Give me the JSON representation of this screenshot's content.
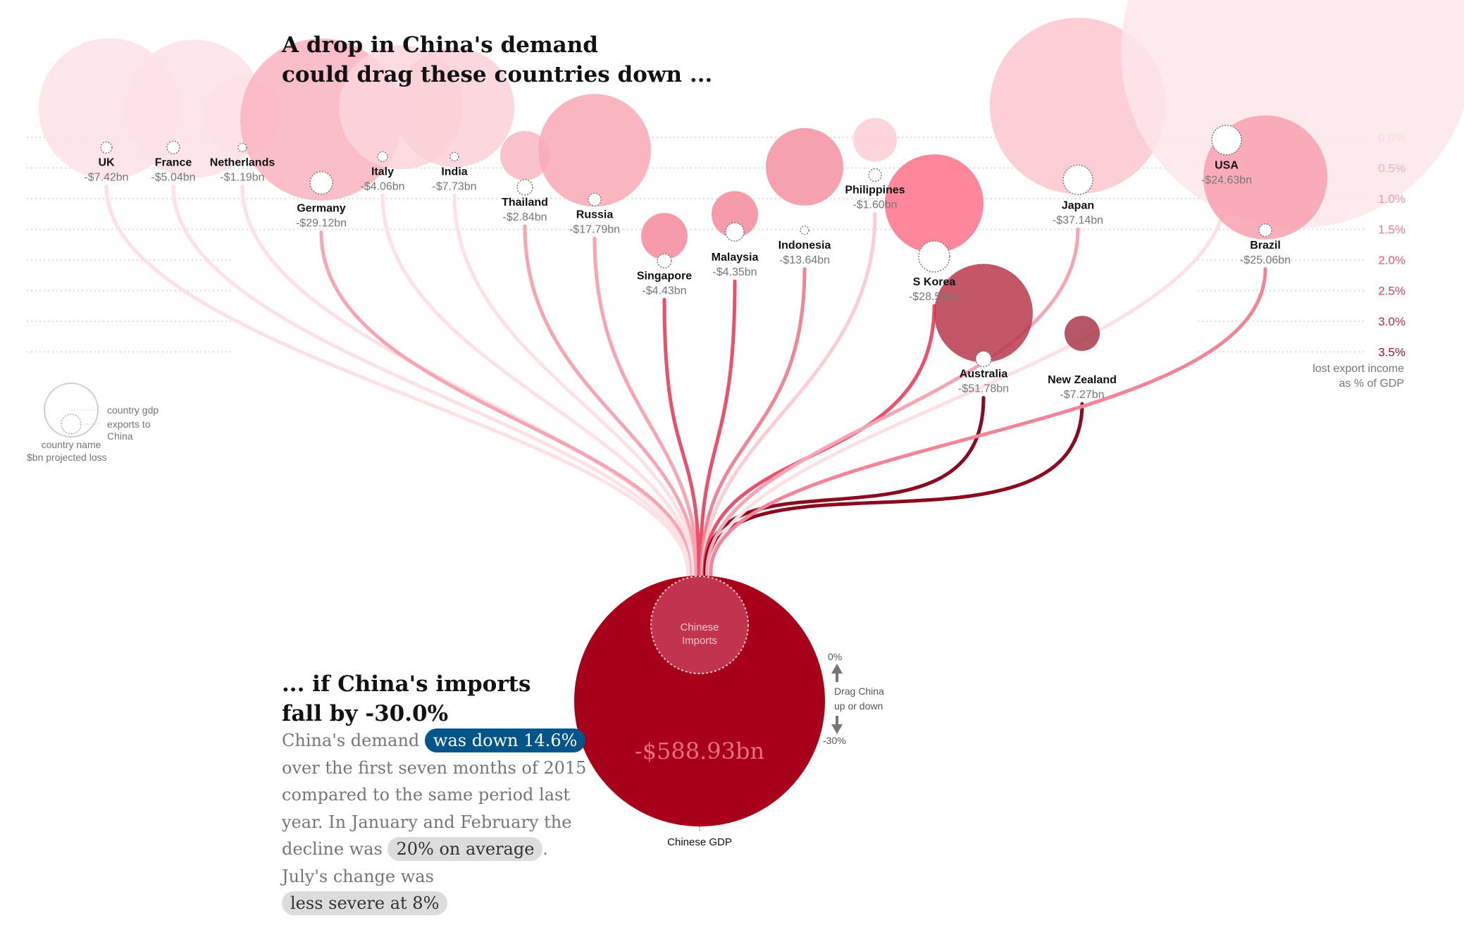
{
  "headline": {
    "line1": "A drop in China's demand",
    "line2": "could drag these countries down ..."
  },
  "subheadline": {
    "line1": "... if China's imports",
    "line2": "fall by -30.0%"
  },
  "paragraph": {
    "part1": "China's demand",
    "pill1": "was down 14.6%",
    "part2": "over the first seven months of 2015 compared to the same period last year. In January and February the decline was",
    "pill2": "20% on average",
    "part3": ".",
    "part4": "July's change was",
    "pill3": "less severe at 8%"
  },
  "axis": {
    "ticks": [
      "0.0%",
      "0.5%",
      "1.0%",
      "1.5%",
      "2.0%",
      "2.5%",
      "3.0%",
      "3.5%"
    ],
    "tick_colors": [
      "#fbd9dd",
      "#f8b2bc",
      "#f594a3",
      "#f07a8c",
      "#e75d73",
      "#d8415a",
      "#c52a45",
      "#a8102e"
    ],
    "caption_line1": "lost export income",
    "caption_line2": "as % of GDP"
  },
  "legend": {
    "gdp": "country gdp",
    "exports_line1": "exports to",
    "exports_line2": "China",
    "name": "country name",
    "loss": "$bn projected loss"
  },
  "china": {
    "imports_line1": "Chinese",
    "imports_line2": "Imports",
    "loss": "-$588.93bn",
    "gdp_label": "Chinese GDP",
    "color": "#a8001a",
    "slider_top": "0%",
    "slider_bottom": "-30%",
    "drag_line1": "Drag China",
    "drag_line2": "up or down"
  },
  "countries": [
    {
      "name": "UK",
      "loss": "-$7.42bn",
      "pct": 0.05,
      "gdp_r": 100,
      "exp_r": 8,
      "color": "#fde2e6"
    },
    {
      "name": "France",
      "loss": "-$5.04bn",
      "pct": 0.05,
      "gdp_r": 98,
      "exp_r": 9,
      "color": "#fde2e6"
    },
    {
      "name": "Netherlands",
      "loss": "-$1.19bn",
      "pct": 0.05,
      "gdp_r": 55,
      "exp_r": 6,
      "color": "#fde2e6"
    },
    {
      "name": "Germany",
      "loss": "-$29.12bn",
      "pct": 0.8,
      "gdp_r": 115,
      "exp_r": 16,
      "color": "#f9b3bf"
    },
    {
      "name": "Italy",
      "loss": "-$4.06bn",
      "pct": 0.2,
      "gdp_r": 88,
      "exp_r": 7,
      "color": "#fcd5dc"
    },
    {
      "name": "India",
      "loss": "-$7.73bn",
      "pct": 0.2,
      "gdp_r": 85,
      "exp_r": 6,
      "color": "#fcd0d7"
    },
    {
      "name": "Thailand",
      "loss": "-$2.84bn",
      "pct": 0.7,
      "gdp_r": 35,
      "exp_r": 11,
      "color": "#f9b8c3"
    },
    {
      "name": "Russia",
      "loss": "-$17.79bn",
      "pct": 0.9,
      "gdp_r": 80,
      "exp_r": 9,
      "color": "#f8a9b6"
    },
    {
      "name": "Singapore",
      "loss": "-$4.43bn",
      "pct": 1.9,
      "gdp_r": 33,
      "exp_r": 10,
      "color": "#f58a9c"
    },
    {
      "name": "Malaysia",
      "loss": "-$4.35bn",
      "pct": 1.6,
      "gdp_r": 33,
      "exp_r": 13,
      "color": "#f5899b"
    },
    {
      "name": "Indonesia",
      "loss": "-$13.64bn",
      "pct": 1.4,
      "gdp_r": 55,
      "exp_r": 6,
      "color": "#f590a2"
    },
    {
      "name": "Philippines",
      "loss": "-$1.60bn",
      "pct": 0.5,
      "gdp_r": 31,
      "exp_r": 9,
      "color": "#fbcdd5"
    },
    {
      "name": "S Korea",
      "loss": "-$28.53bn",
      "pct": 2.0,
      "gdp_r": 70,
      "exp_r": 22,
      "color": "#ff7289"
    },
    {
      "name": "Australia",
      "loss": "-$51.78bn",
      "pct": 3.5,
      "gdp_r": 70,
      "exp_r": 11,
      "color": "#b8394e"
    },
    {
      "name": "New Zealand",
      "loss": "-$7.27bn",
      "pct": 3.6,
      "gdp_r": 25,
      "exp_r": 0,
      "color": "#a83a4c"
    },
    {
      "name": "Japan",
      "loss": "-$37.14bn",
      "pct": 0.75,
      "gdp_r": 125,
      "exp_r": 21,
      "color": "#fbc5ce"
    },
    {
      "name": "USA",
      "loss": "-$24.63bn",
      "pct": 0.1,
      "gdp_r": 250,
      "exp_r": 21,
      "color": "#fde6ea"
    },
    {
      "name": "Brazil",
      "loss": "-$25.06bn",
      "pct": 1.4,
      "gdp_r": 88,
      "exp_r": 9,
      "color": "#f8a0b0"
    }
  ]
}
